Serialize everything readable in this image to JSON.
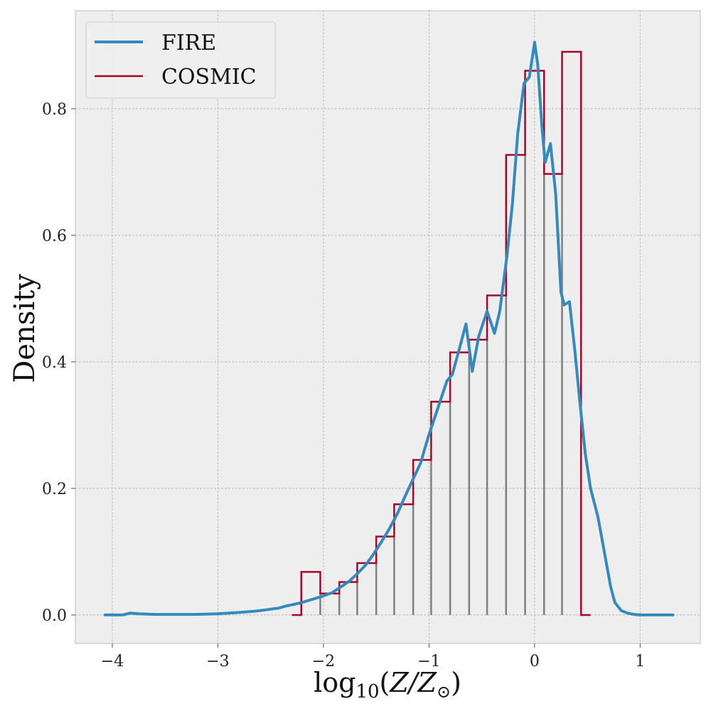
{
  "chart_data": {
    "type": "line",
    "ylabel": "Density",
    "xlabel": {
      "base": "log",
      "sub": "10",
      "open": "(",
      "z": "Z",
      "slash": "/",
      "z2": "Z",
      "sun": "⊙",
      "close": ")"
    },
    "xlim": [
      -4.35,
      1.57
    ],
    "ylim": [
      -0.045,
      0.955
    ],
    "xticks": [
      -4,
      -3,
      -2,
      -1,
      0,
      1
    ],
    "xtick_labels": [
      "−4",
      "−3",
      "−2",
      "−1",
      "0",
      "1"
    ],
    "yticks": [
      0.0,
      0.2,
      0.4,
      0.6,
      0.8
    ],
    "ytick_labels": [
      "0.0",
      "0.2",
      "0.4",
      "0.6",
      "0.8"
    ],
    "grid": true,
    "legend_position": "top-left",
    "series": [
      {
        "name": "FIRE",
        "kind": "line",
        "color": "#348abd",
        "x": [
          -4.07,
          -3.9,
          -3.83,
          -3.75,
          -3.6,
          -3.4,
          -3.2,
          -3.0,
          -2.8,
          -2.65,
          -2.55,
          -2.42,
          -2.36,
          -2.3,
          -2.22,
          -2.1,
          -2.02,
          -1.92,
          -1.83,
          -1.76,
          -1.68,
          -1.6,
          -1.53,
          -1.46,
          -1.38,
          -1.3,
          -1.22,
          -1.15,
          -1.08,
          -1.01,
          -0.94,
          -0.88,
          -0.83,
          -0.78,
          -0.73,
          -0.65,
          -0.59,
          -0.53,
          -0.45,
          -0.38,
          -0.33,
          -0.26,
          -0.21,
          -0.16,
          -0.1,
          -0.05,
          0.0,
          0.03,
          0.07,
          0.1,
          0.15,
          0.2,
          0.25,
          0.28,
          0.33,
          0.38,
          0.43,
          0.48,
          0.53,
          0.6,
          0.66,
          0.72,
          0.76,
          0.82,
          0.88,
          0.94,
          1.0,
          1.1,
          1.31
        ],
        "y": [
          0.0,
          0.0,
          0.003,
          0.002,
          0.001,
          0.001,
          0.001,
          0.002,
          0.004,
          0.006,
          0.008,
          0.011,
          0.014,
          0.016,
          0.019,
          0.025,
          0.029,
          0.035,
          0.045,
          0.053,
          0.065,
          0.079,
          0.095,
          0.113,
          0.135,
          0.16,
          0.19,
          0.215,
          0.24,
          0.28,
          0.315,
          0.345,
          0.37,
          0.38,
          0.41,
          0.46,
          0.385,
          0.44,
          0.48,
          0.445,
          0.48,
          0.57,
          0.65,
          0.76,
          0.84,
          0.85,
          0.905,
          0.87,
          0.77,
          0.715,
          0.745,
          0.665,
          0.51,
          0.49,
          0.495,
          0.42,
          0.335,
          0.255,
          0.2,
          0.155,
          0.1,
          0.045,
          0.02,
          0.007,
          0.003,
          0.001,
          0.0,
          0.0,
          0.0
        ]
      },
      {
        "name": "COSMIC",
        "kind": "step",
        "color": "#a60628",
        "edges": [
          -2.3,
          -2.21,
          -2.03,
          -1.85,
          -1.68,
          -1.5,
          -1.33,
          -1.15,
          -0.98,
          -0.8,
          -0.62,
          -0.45,
          -0.27,
          -0.09,
          0.09,
          0.26,
          0.44,
          0.53
        ],
        "values": [
          0.0,
          0.068,
          0.034,
          0.052,
          0.082,
          0.124,
          0.175,
          0.245,
          0.337,
          0.415,
          0.435,
          0.505,
          0.727,
          0.86,
          0.697,
          0.89,
          0.0
        ]
      }
    ]
  }
}
